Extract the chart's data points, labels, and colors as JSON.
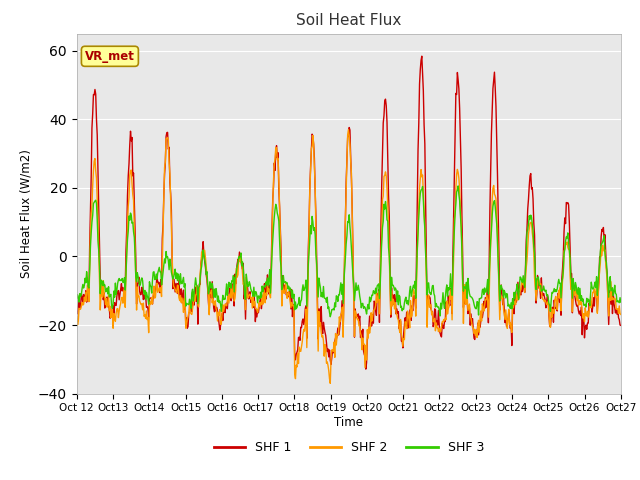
{
  "title": "Soil Heat Flux",
  "ylabel": "Soil Heat Flux (W/m2)",
  "xlabel": "Time",
  "ylim": [
    -40,
    65
  ],
  "bg_color": "#e8e8e8",
  "fig_bg": "#ffffff",
  "annotation_text": "VR_met",
  "legend_labels": [
    "SHF 1",
    "SHF 2",
    "SHF 3"
  ],
  "legend_colors": [
    "#cc0000",
    "#ff9900",
    "#33cc00"
  ],
  "xtick_labels": [
    "Oct 12",
    "Oct 13",
    "Oct 14",
    "Oct 15",
    "Oct 16",
    "Oct 17",
    "Oct 18",
    "Oct 19",
    "Oct 20",
    "Oct 21",
    "Oct 22",
    "Oct 23",
    "Oct 24",
    "Oct 25",
    "Oct 26",
    "Oct 27"
  ],
  "grid_color": "#ffffff",
  "line_width": 1.0,
  "daily_peaks_r": [
    50,
    34,
    35,
    1,
    0,
    33,
    34,
    37,
    46,
    59,
    53,
    52,
    23,
    16,
    8
  ],
  "daily_peaks_o": [
    28,
    25,
    35,
    1,
    0,
    32,
    35,
    36,
    25,
    26,
    25,
    20,
    10,
    5,
    2
  ],
  "daily_peaks_g": [
    17,
    13,
    0,
    0,
    0,
    14,
    11,
    10,
    15,
    20,
    20,
    15,
    13,
    6,
    5
  ],
  "daily_night_r": [
    -17,
    -15,
    -13,
    -20,
    -17,
    -15,
    -30,
    -30,
    -23,
    -22,
    -22,
    -22,
    -15,
    -20,
    -20
  ],
  "daily_night_o": [
    -18,
    -20,
    -15,
    -20,
    -17,
    -16,
    -36,
    -30,
    -23,
    -23,
    -22,
    -22,
    -15,
    -18,
    -18
  ],
  "daily_night_g": [
    -13,
    -12,
    -8,
    -15,
    -13,
    -12,
    -16,
    -16,
    -15,
    -15,
    -15,
    -15,
    -12,
    -14,
    -14
  ],
  "n_days": 15,
  "pts_per_day": 48,
  "noise_r": 1.8,
  "noise_o": 1.5,
  "noise_g": 1.2,
  "random_seed": 42
}
